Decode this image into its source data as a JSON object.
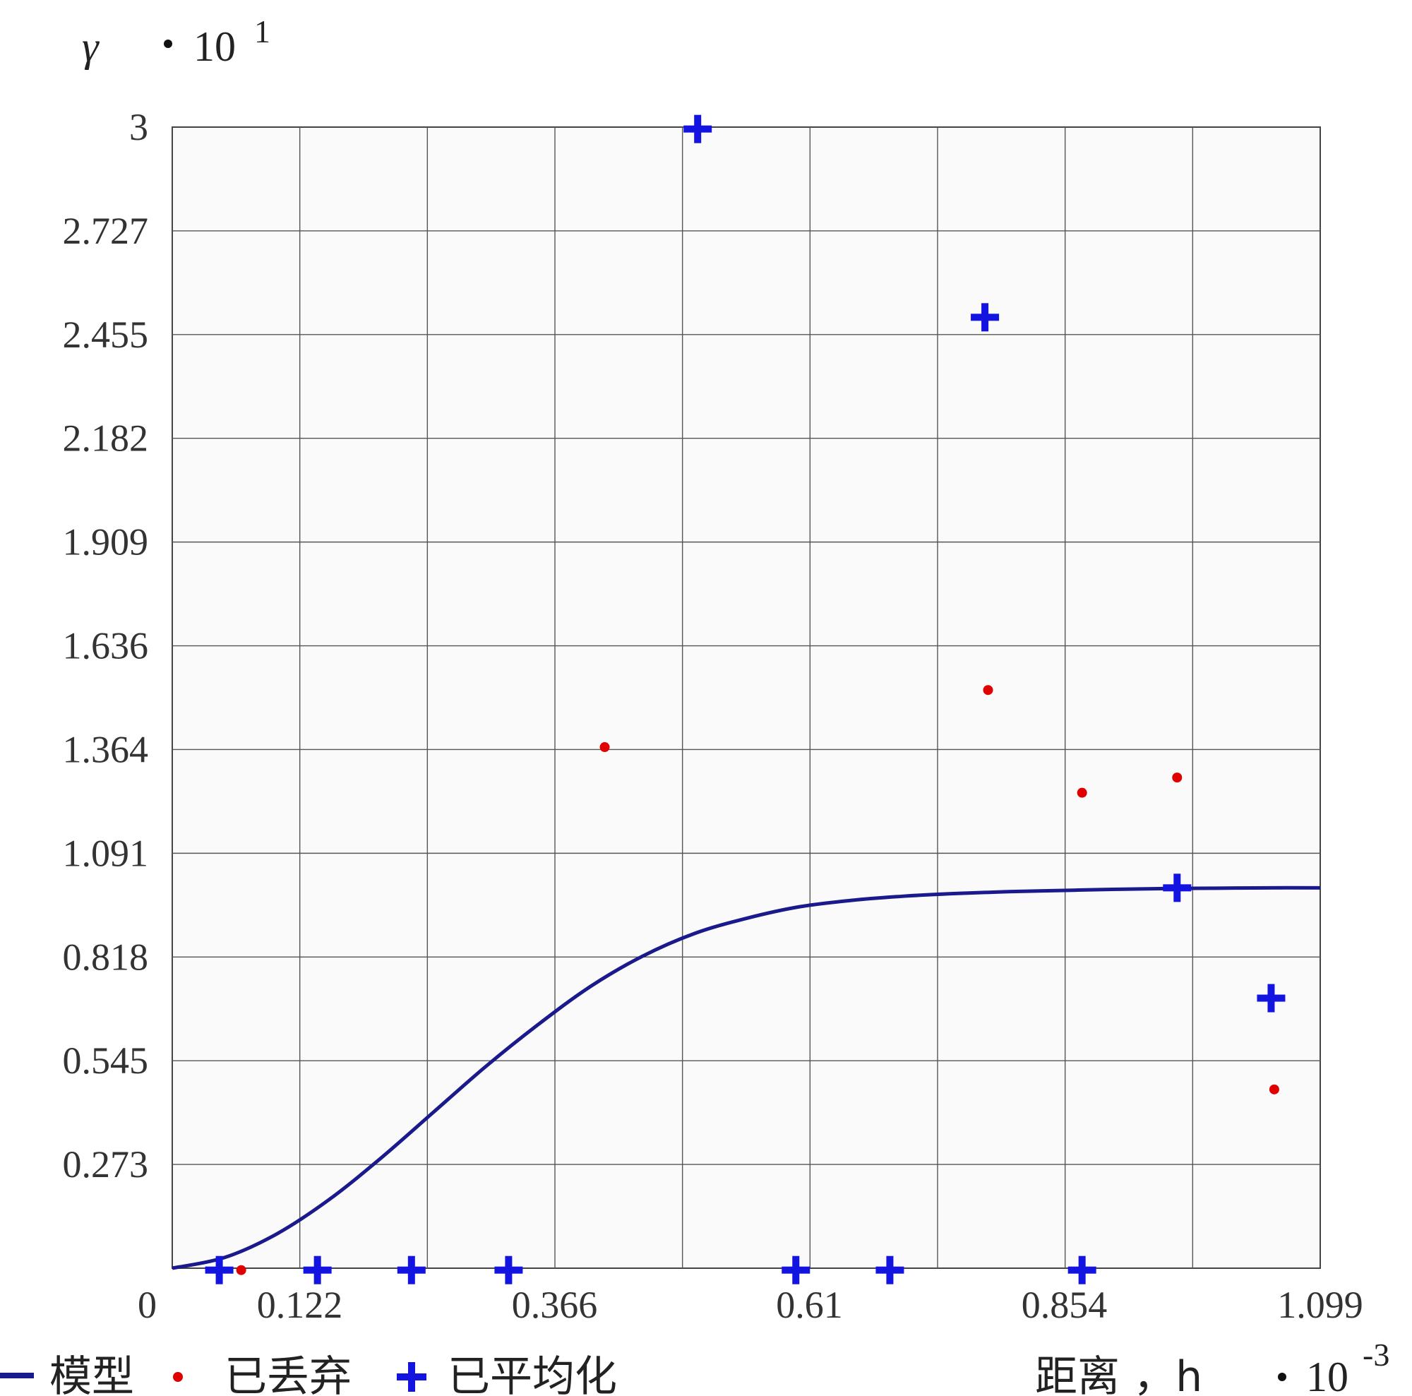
{
  "chart_data": {
    "type": "scatter",
    "y_axis": {
      "symbol": "γ",
      "multiplier": "10",
      "exponent": "1",
      "ticks": [
        "3",
        "2.727",
        "2.455",
        "2.182",
        "1.909",
        "1.636",
        "1.364",
        "1.091",
        "0.818",
        "0.545",
        "0.273"
      ],
      "range": [
        0,
        3
      ]
    },
    "x_axis": {
      "label": "距离 ，h",
      "multiplier": "10",
      "exponent": "-3",
      "ticks": [
        "0",
        "0.122",
        "0.366",
        "0.61",
        "0.854",
        "1.099"
      ],
      "tick_values": [
        0,
        0.122,
        0.366,
        0.61,
        0.854,
        1.099
      ],
      "range": [
        0,
        1.099
      ]
    },
    "grid": true,
    "series": [
      {
        "name": "模型",
        "kind": "line",
        "color": "#1a1a8c",
        "x": [
          0,
          0.05,
          0.1,
          0.15,
          0.2,
          0.25,
          0.3,
          0.35,
          0.4,
          0.45,
          0.5,
          0.55,
          0.6,
          0.65,
          0.7,
          0.75,
          0.8,
          0.85,
          0.9,
          0.95,
          1.0,
          1.05,
          1.099
        ],
        "y": [
          0,
          0.028,
          0.09,
          0.18,
          0.29,
          0.41,
          0.53,
          0.64,
          0.74,
          0.82,
          0.88,
          0.92,
          0.95,
          0.967,
          0.978,
          0.985,
          0.99,
          0.993,
          0.996,
          0.998,
          0.999,
          1.0,
          1.0
        ],
        "y_scale_note": "values in units of 10^1 displayed; curve levels near 1.0 sill"
      },
      {
        "name": "已丢弃",
        "kind": "dot",
        "color": "#e00000",
        "x": [
          0.066,
          0.414,
          0.781,
          0.871,
          0.962,
          1.055
        ],
        "y": [
          -0.005,
          1.37,
          1.52,
          1.25,
          1.29,
          0.47
        ]
      },
      {
        "name": "已平均化",
        "kind": "plus",
        "color": "#1414e0",
        "x": [
          0.045,
          0.139,
          0.229,
          0.322,
          0.503,
          0.597,
          0.687,
          0.778,
          0.871,
          0.962,
          1.052
        ],
        "y": [
          -0.005,
          -0.005,
          -0.005,
          -0.005,
          2.995,
          -0.005,
          -0.005,
          2.5,
          -0.005,
          1.0,
          0.71
        ]
      }
    ]
  }
}
